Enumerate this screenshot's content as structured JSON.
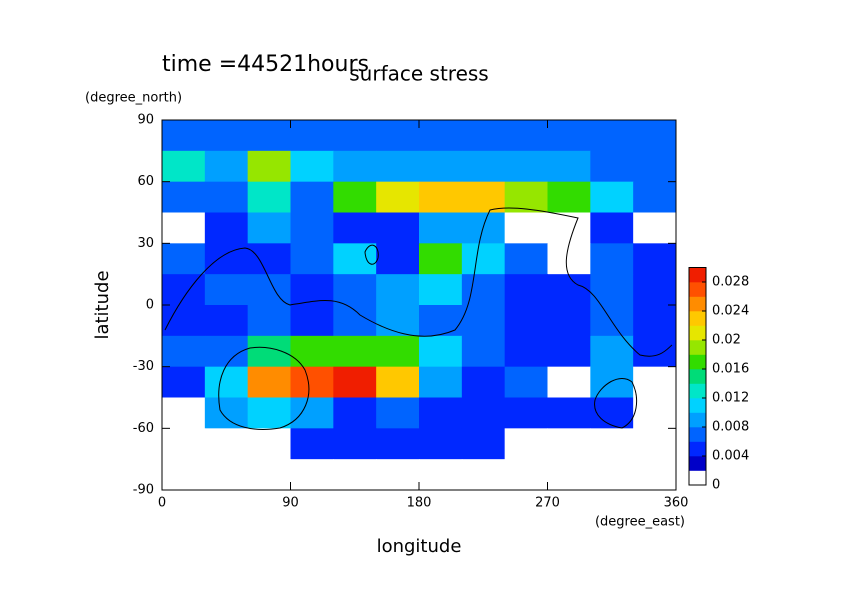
{
  "chart_data": {
    "type": "contour",
    "title": "surface stress",
    "annotation": "time =44521hours",
    "xlabel": "longitude",
    "ylabel": "latitude",
    "xunit": "(degree_east)",
    "yunit": "(degree_north)",
    "x": [
      15,
      45,
      75,
      105,
      135,
      165,
      195,
      225,
      255,
      285,
      315,
      345
    ],
    "y": [
      82.5,
      67.5,
      52.5,
      37.5,
      22.5,
      7.5,
      -7.5,
      -22.5,
      -37.5,
      -52.5,
      -67.5,
      -82.5
    ],
    "z": [
      [
        0.006,
        0.006,
        0.006,
        0.006,
        0.006,
        0.006,
        0.006,
        0.006,
        0.006,
        0.006,
        0.006,
        0.006
      ],
      [
        0.012,
        0.008,
        0.018,
        0.01,
        0.008,
        0.008,
        0.008,
        0.008,
        0.008,
        0.008,
        0.006,
        0.006
      ],
      [
        0.006,
        0.006,
        0.012,
        0.006,
        0.016,
        0.02,
        0.022,
        0.022,
        0.018,
        0.016,
        0.01,
        0.006
      ],
      [
        0,
        0.004,
        0.008,
        0.006,
        0.004,
        0.004,
        0.008,
        0.008,
        0,
        0,
        0.004,
        0
      ],
      [
        0.006,
        0.004,
        0.004,
        0.006,
        0.01,
        0.004,
        0.016,
        0.01,
        0.006,
        0,
        0.006,
        0.004
      ],
      [
        0.004,
        0.006,
        0.006,
        0.004,
        0.006,
        0.008,
        0.01,
        0.006,
        0.004,
        0.004,
        0.006,
        0.004
      ],
      [
        0.004,
        0.004,
        0.006,
        0.004,
        0.006,
        0.008,
        0.006,
        0.006,
        0.004,
        0.004,
        0.006,
        0.004
      ],
      [
        0.006,
        0.006,
        0.014,
        0.016,
        0.016,
        0.016,
        0.01,
        0.006,
        0.004,
        0.004,
        0.008,
        0.004
      ],
      [
        0.004,
        0.01,
        0.024,
        0.026,
        0.028,
        0.022,
        0.008,
        0.004,
        0.006,
        0,
        0.008,
        0
      ],
      [
        0,
        0.008,
        0.01,
        0.008,
        0.004,
        0.006,
        0.004,
        0.004,
        0.004,
        0.004,
        0.004,
        0
      ],
      [
        0,
        0,
        0,
        0.004,
        0.004,
        0.004,
        0.004,
        0.004,
        0,
        0,
        0,
        0
      ],
      [
        0,
        0,
        0,
        0,
        0,
        0,
        0,
        0,
        0,
        0,
        0,
        0
      ]
    ],
    "xlim": [
      0,
      360
    ],
    "ylim": [
      -90,
      90
    ],
    "xticks": [
      0,
      90,
      180,
      270,
      360
    ],
    "yticks": [
      -90,
      -60,
      -30,
      0,
      30,
      60,
      90
    ],
    "colorbar": {
      "lim": [
        0,
        0.03
      ],
      "ticks": [
        0,
        0.004,
        0.008,
        0.012,
        0.016,
        0.02,
        0.024,
        0.028
      ],
      "levels": [
        0,
        0.002,
        0.004,
        0.006,
        0.008,
        0.01,
        0.012,
        0.014,
        0.016,
        0.018,
        0.02,
        0.022,
        0.024,
        0.026,
        0.028,
        0.03
      ],
      "colors": [
        "#ffffff",
        "#0000c8",
        "#0028ff",
        "#0064ff",
        "#00a0ff",
        "#00d2ff",
        "#00e6c8",
        "#00dc78",
        "#32dc00",
        "#96e600",
        "#e6e600",
        "#ffc800",
        "#ff8c00",
        "#ff5000",
        "#f01e00"
      ]
    }
  }
}
